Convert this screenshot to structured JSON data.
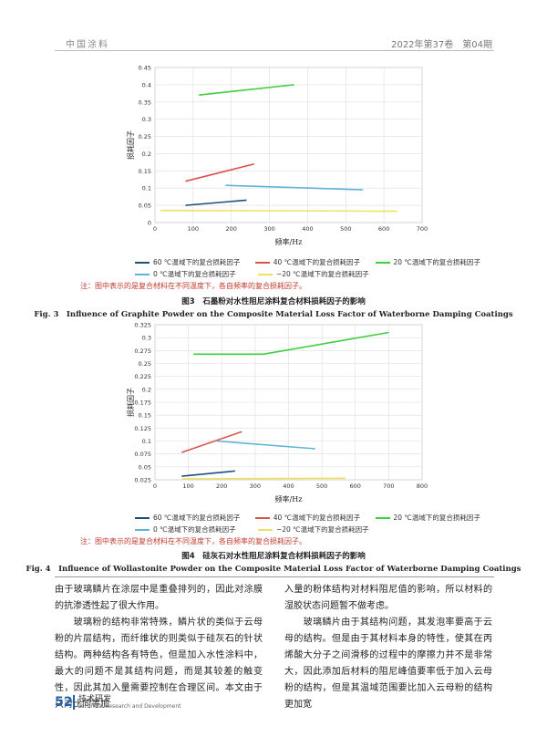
{
  "header": {
    "journal": "中国涂料",
    "issue": "2022年第37卷　第04期"
  },
  "legend_labels": [
    "60 ℃温域下的复合损耗因子",
    "40 ℃温域下的复合损耗因子",
    "20 ℃温域下的复合损耗因子",
    "0 ℃温域下的复合损耗因子",
    "−20 ℃温域下的复合损耗因子"
  ],
  "colors": {
    "s60": "#1f4e79",
    "s40": "#d9534f",
    "s20": "#3ecf3e",
    "s0": "#5fb3d9",
    "sm20": "#f0e060"
  },
  "chart_data": [
    {
      "type": "line",
      "xlabel": "频率/Hz",
      "ylabel": "损耗因子",
      "xlim": [
        0,
        700
      ],
      "ylim": [
        0,
        0.45
      ],
      "xticks": [
        "0",
        "100",
        "200",
        "300",
        "400",
        "500",
        "600",
        "700"
      ],
      "yticks": [
        "0",
        "0.05",
        "0.1",
        "0.15",
        "0.2",
        "0.25",
        "0.3",
        "0.35",
        "0.4",
        "0.45"
      ],
      "grid": true,
      "series": [
        {
          "name": "60 ℃温域下的复合损耗因子",
          "x": [
            80,
            240
          ],
          "y": [
            0.05,
            0.065
          ]
        },
        {
          "name": "40 ℃温域下的复合损耗因子",
          "x": [
            80,
            260
          ],
          "y": [
            0.12,
            0.17
          ]
        },
        {
          "name": "20 ℃温域下的复合损耗因子",
          "x": [
            115,
            365
          ],
          "y": [
            0.37,
            0.4
          ]
        },
        {
          "name": "0 ℃温域下的复合损耗因子",
          "x": [
            185,
            545
          ],
          "y": [
            0.108,
            0.095
          ]
        },
        {
          "name": "−20 ℃温域下的复合损耗因子",
          "x": [
            15,
            635
          ],
          "y": [
            0.035,
            0.033
          ]
        }
      ]
    },
    {
      "type": "line",
      "xlabel": "频率/Hz",
      "ylabel": "损耗因子",
      "xlim": [
        0,
        800
      ],
      "ylim": [
        0.025,
        0.325
      ],
      "xticks": [
        "0",
        "100",
        "200",
        "300",
        "400",
        "500",
        "600",
        "700",
        "800"
      ],
      "yticks": [
        "0.025",
        "0.05",
        "0.075",
        "0.1",
        "0.125",
        "0.15",
        "0.175",
        "0.2",
        "0.225",
        "0.25",
        "0.275",
        "0.3",
        "0.325"
      ],
      "grid": true,
      "series": [
        {
          "name": "60 ℃温域下的复合损耗因子",
          "x": [
            80,
            240
          ],
          "y": [
            0.032,
            0.042
          ]
        },
        {
          "name": "40 ℃温域下的复合损耗因子",
          "x": [
            80,
            260
          ],
          "y": [
            0.078,
            0.118
          ]
        },
        {
          "name": "20 ℃温域下的复合损耗因子",
          "x": [
            115,
            325,
            700
          ],
          "y": [
            0.268,
            0.268,
            0.31
          ]
        },
        {
          "name": "0 ℃温域下的复合损耗因子",
          "x": [
            185,
            480
          ],
          "y": [
            0.1,
            0.085
          ]
        },
        {
          "name": "−20 ℃温域下的复合损耗因子",
          "x": [
            80,
            570
          ],
          "y": [
            0.027,
            0.028
          ]
        }
      ]
    }
  ],
  "note": "注：图中表示的是复合材料在不同温度下，各自频率的复合损耗因子。",
  "fig3": {
    "cn": "图3　石墨粉对水性阻尼涂料复合材料损耗因子的影响",
    "en": "Fig. 3　Influence of Graphite Powder on the Composite Material Loss Factor of Waterborne Damping Coatings"
  },
  "fig4": {
    "cn": "图4　硅灰石对水性阻尼涂料复合材料损耗因子的影响",
    "en": "Fig. 4　Influence of Wollastonite Powder on the Composite Material Loss Factor of Waterborne Damping Coatings"
  },
  "body": {
    "left": [
      "由于玻璃鳞片在涂层中是重叠排列的，因此对涂膜的抗渗透性起了很大作用。",
      "　　玻璃粉的结构非常特殊，鳞片状的类似于云母粉的片层结构，而纤维状的则类似于硅灰石的针状结构。两种结构各有特色，但是加入水性涂料中，最大的问题不是其结构问题，而是其较差的触变性，因此其加入量需要控制在合理区间。本文由于只对比同等加"
    ],
    "right": [
      "入量的粉体结构对材料阻尼值的影响，所以材料的湿胶状态问题暂不做考虑。",
      "　　玻璃鳞片由于其结构问题，其发泡率要高于云母的结构。但是由于其材料本身的特性，使其在丙烯酸大分子之间滑移的过程中的摩擦力并不是非常大，因此添加后材料的阻尼峰值要率低于加入云母粉的结构，但是其温域范围要比加入云母粉的结构更加宽"
    ]
  },
  "footer": {
    "page": "52",
    "section_cn": "技术研发",
    "section_en": "Technical Research and Development"
  }
}
